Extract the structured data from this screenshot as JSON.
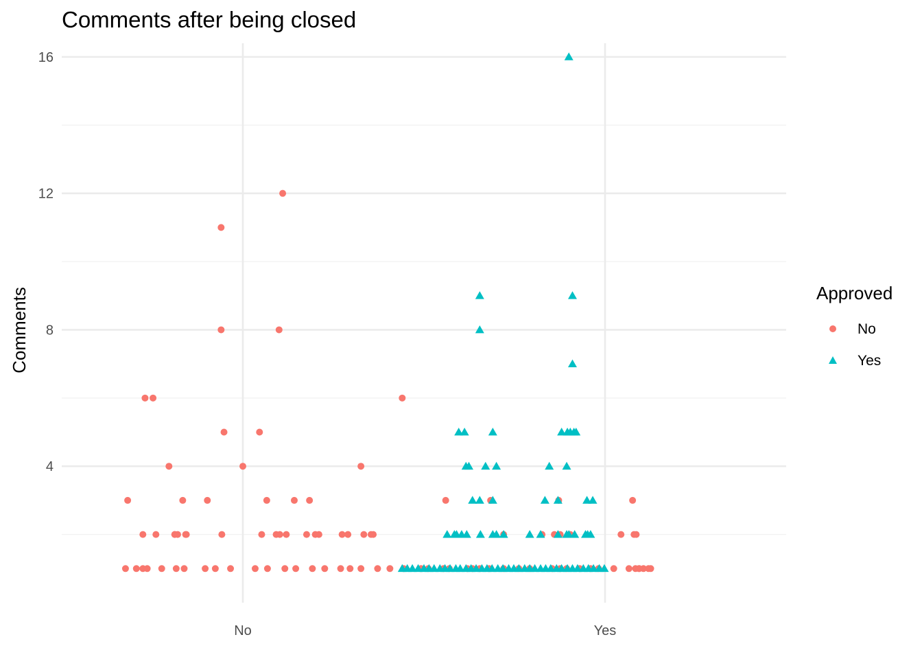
{
  "chart_data": {
    "type": "scatter",
    "title": "Comments after being closed",
    "xlabel": "",
    "ylabel": "Comments",
    "categories": [
      "No",
      "Yes"
    ],
    "yticks": [
      "4",
      "8",
      "12",
      "16"
    ],
    "ylim": [
      0.0,
      16.4
    ],
    "grid": true,
    "legend": {
      "title": "Approved",
      "position": "right"
    },
    "colors": {
      "No": "#f8766d",
      "Yes": "#00bfc4"
    },
    "series": [
      {
        "name": "No",
        "marker": "circle",
        "points": [
          {
            "x": -0.59,
            "y": 3
          },
          {
            "x": -0.38,
            "y": 2
          },
          {
            "x": -0.2,
            "y": 2
          },
          {
            "x": 0.06,
            "y": 2
          },
          {
            "x": 0.06,
            "y": 2
          },
          {
            "x": 0.1,
            "y": 2
          },
          {
            "x": 0.21,
            "y": 2
          },
          {
            "x": 0.22,
            "y": 2
          },
          {
            "x": 0.17,
            "y": 3
          },
          {
            "x": 0.51,
            "y": 3
          },
          {
            "x": 0.71,
            "y": 2
          },
          {
            "x": 1.26,
            "y": 2
          },
          {
            "x": 1.46,
            "y": 2
          },
          {
            "x": 1.51,
            "y": 2
          },
          {
            "x": 1.6,
            "y": 2
          },
          {
            "x": 1.71,
            "y": 3
          },
          {
            "x": 1.88,
            "y": 2
          },
          {
            "x": 1.92,
            "y": 3
          },
          {
            "x": 2.0,
            "y": 2
          },
          {
            "x": 2.05,
            "y": 2
          },
          {
            "x": 2.37,
            "y": 2
          },
          {
            "x": 2.45,
            "y": 2
          },
          {
            "x": 2.67,
            "y": 2
          },
          {
            "x": 2.77,
            "y": 2
          },
          {
            "x": 2.8,
            "y": 2
          },
          {
            "x": 3.8,
            "y": 3
          },
          {
            "x": 4.42,
            "y": 3
          },
          {
            "x": 4.6,
            "y": 2
          },
          {
            "x": 5.13,
            "y": 2
          },
          {
            "x": 5.3,
            "y": 2
          },
          {
            "x": 5.36,
            "y": 3
          },
          {
            "x": 5.38,
            "y": 2
          },
          {
            "x": 5.52,
            "y": 2
          },
          {
            "x": 6.22,
            "y": 2
          },
          {
            "x": 6.38,
            "y": 3
          },
          {
            "x": 6.4,
            "y": 2
          },
          {
            "x": 6.43,
            "y": 2
          },
          {
            "x": 6.6,
            "y": 1
          },
          {
            "x": -0.62,
            "y": 1
          },
          {
            "x": -0.47,
            "y": 1
          },
          {
            "x": -0.32,
            "y": 1
          },
          {
            "x": -0.12,
            "y": 1
          },
          {
            "x": 0.08,
            "y": 1
          },
          {
            "x": 0.19,
            "y": 1
          },
          {
            "x": 0.48,
            "y": 1
          },
          {
            "x": 0.62,
            "y": 1
          },
          {
            "x": 1.17,
            "y": 1
          },
          {
            "x": 1.34,
            "y": 1
          },
          {
            "x": 1.73,
            "y": 1
          },
          {
            "x": 1.96,
            "y": 1
          },
          {
            "x": 2.13,
            "y": 1
          },
          {
            "x": 2.35,
            "y": 1
          },
          {
            "x": 2.48,
            "y": 1
          },
          {
            "x": 2.86,
            "y": 1
          },
          {
            "x": 3.22,
            "y": 1
          },
          {
            "x": 3.46,
            "y": 1
          },
          {
            "x": 3.56,
            "y": 1
          },
          {
            "x": 3.77,
            "y": 1
          },
          {
            "x": 3.85,
            "y": 1
          },
          {
            "x": 4.1,
            "y": 1
          },
          {
            "x": 4.17,
            "y": 1
          },
          {
            "x": 4.27,
            "y": 1
          },
          {
            "x": 4.4,
            "y": 1
          },
          {
            "x": 4.6,
            "y": 1
          },
          {
            "x": 4.81,
            "y": 1
          },
          {
            "x": 4.96,
            "y": 1
          },
          {
            "x": 5.27,
            "y": 1
          },
          {
            "x": 5.38,
            "y": 1
          },
          {
            "x": 5.47,
            "y": 1
          },
          {
            "x": 5.65,
            "y": 1
          },
          {
            "x": 5.91,
            "y": 1
          },
          {
            "x": 6.12,
            "y": 1
          },
          {
            "x": 6.33,
            "y": 1
          },
          {
            "x": 6.53,
            "y": 1
          },
          {
            "x": 6.63,
            "y": 1
          },
          {
            "x": -0.38,
            "y": 1
          },
          {
            "x": 0.83,
            "y": 1
          },
          {
            "x": 1.58,
            "y": 1
          },
          {
            "x": 2.63,
            "y": 1
          },
          {
            "x": 3.03,
            "y": 1
          },
          {
            "x": 5.8,
            "y": 1
          },
          {
            "x": 6.42,
            "y": 1
          },
          {
            "x": 6.47,
            "y": 1
          },
          {
            "x": 6.47,
            "y": 1
          },
          {
            "x": -0.35,
            "y": 6
          },
          {
            "x": -0.24,
            "y": 6
          },
          {
            "x": -0.02,
            "y": 4
          },
          {
            "x": 0.7,
            "y": 11
          },
          {
            "x": 0.7,
            "y": 8
          },
          {
            "x": 0.74,
            "y": 5
          },
          {
            "x": 1.0,
            "y": 4
          },
          {
            "x": 1.23,
            "y": 5
          },
          {
            "x": 1.33,
            "y": 3
          },
          {
            "x": 1.55,
            "y": 12
          },
          {
            "x": 1.5,
            "y": 8
          },
          {
            "x": 2.63,
            "y": 4
          },
          {
            "x": 3.2,
            "y": 6
          }
        ]
      },
      {
        "name": "Yes",
        "marker": "triangle",
        "points": [
          {
            "x": 5.5,
            "y": 16
          },
          {
            "x": 4.27,
            "y": 9
          },
          {
            "x": 5.55,
            "y": 9
          },
          {
            "x": 4.27,
            "y": 8
          },
          {
            "x": 5.55,
            "y": 7
          },
          {
            "x": 3.98,
            "y": 5
          },
          {
            "x": 4.06,
            "y": 5
          },
          {
            "x": 4.45,
            "y": 5
          },
          {
            "x": 5.4,
            "y": 5
          },
          {
            "x": 5.48,
            "y": 5
          },
          {
            "x": 5.52,
            "y": 5
          },
          {
            "x": 5.57,
            "y": 5
          },
          {
            "x": 5.6,
            "y": 5
          },
          {
            "x": 4.08,
            "y": 4
          },
          {
            "x": 4.12,
            "y": 4
          },
          {
            "x": 4.35,
            "y": 4
          },
          {
            "x": 4.5,
            "y": 4
          },
          {
            "x": 5.23,
            "y": 4
          },
          {
            "x": 5.47,
            "y": 4
          },
          {
            "x": 4.17,
            "y": 3
          },
          {
            "x": 4.27,
            "y": 3
          },
          {
            "x": 4.45,
            "y": 3
          },
          {
            "x": 5.17,
            "y": 3
          },
          {
            "x": 5.35,
            "y": 3
          },
          {
            "x": 5.75,
            "y": 3
          },
          {
            "x": 5.83,
            "y": 3
          },
          {
            "x": 3.82,
            "y": 2
          },
          {
            "x": 3.92,
            "y": 2
          },
          {
            "x": 3.95,
            "y": 2
          },
          {
            "x": 4.02,
            "y": 2
          },
          {
            "x": 4.09,
            "y": 2
          },
          {
            "x": 4.28,
            "y": 2
          },
          {
            "x": 4.45,
            "y": 2
          },
          {
            "x": 4.5,
            "y": 2
          },
          {
            "x": 4.6,
            "y": 2
          },
          {
            "x": 4.96,
            "y": 2
          },
          {
            "x": 5.11,
            "y": 2
          },
          {
            "x": 5.35,
            "y": 2
          },
          {
            "x": 5.47,
            "y": 2
          },
          {
            "x": 5.5,
            "y": 2
          },
          {
            "x": 5.58,
            "y": 2
          },
          {
            "x": 5.73,
            "y": 2
          },
          {
            "x": 5.76,
            "y": 2
          },
          {
            "x": 5.8,
            "y": 2
          },
          {
            "x": 3.2,
            "y": 1
          },
          {
            "x": 3.27,
            "y": 1
          },
          {
            "x": 3.34,
            "y": 1
          },
          {
            "x": 3.42,
            "y": 1
          },
          {
            "x": 3.5,
            "y": 1
          },
          {
            "x": 3.57,
            "y": 1
          },
          {
            "x": 3.64,
            "y": 1
          },
          {
            "x": 3.72,
            "y": 1
          },
          {
            "x": 3.79,
            "y": 1
          },
          {
            "x": 3.86,
            "y": 1
          },
          {
            "x": 3.94,
            "y": 1
          },
          {
            "x": 4.0,
            "y": 1
          },
          {
            "x": 4.08,
            "y": 1
          },
          {
            "x": 4.15,
            "y": 1
          },
          {
            "x": 4.22,
            "y": 1
          },
          {
            "x": 4.3,
            "y": 1
          },
          {
            "x": 4.37,
            "y": 1
          },
          {
            "x": 4.44,
            "y": 1
          },
          {
            "x": 4.52,
            "y": 1
          },
          {
            "x": 4.59,
            "y": 1
          },
          {
            "x": 4.67,
            "y": 1
          },
          {
            "x": 4.74,
            "y": 1
          },
          {
            "x": 4.81,
            "y": 1
          },
          {
            "x": 4.89,
            "y": 1
          },
          {
            "x": 4.96,
            "y": 1
          },
          {
            "x": 5.03,
            "y": 1
          },
          {
            "x": 5.11,
            "y": 1
          },
          {
            "x": 5.18,
            "y": 1
          },
          {
            "x": 5.25,
            "y": 1
          },
          {
            "x": 5.33,
            "y": 1
          },
          {
            "x": 5.4,
            "y": 1
          },
          {
            "x": 5.48,
            "y": 1
          },
          {
            "x": 5.55,
            "y": 1
          },
          {
            "x": 5.62,
            "y": 1
          },
          {
            "x": 5.7,
            "y": 1
          },
          {
            "x": 5.77,
            "y": 1
          },
          {
            "x": 5.84,
            "y": 1
          },
          {
            "x": 5.92,
            "y": 1
          },
          {
            "x": 5.99,
            "y": 1
          }
        ]
      }
    ]
  }
}
